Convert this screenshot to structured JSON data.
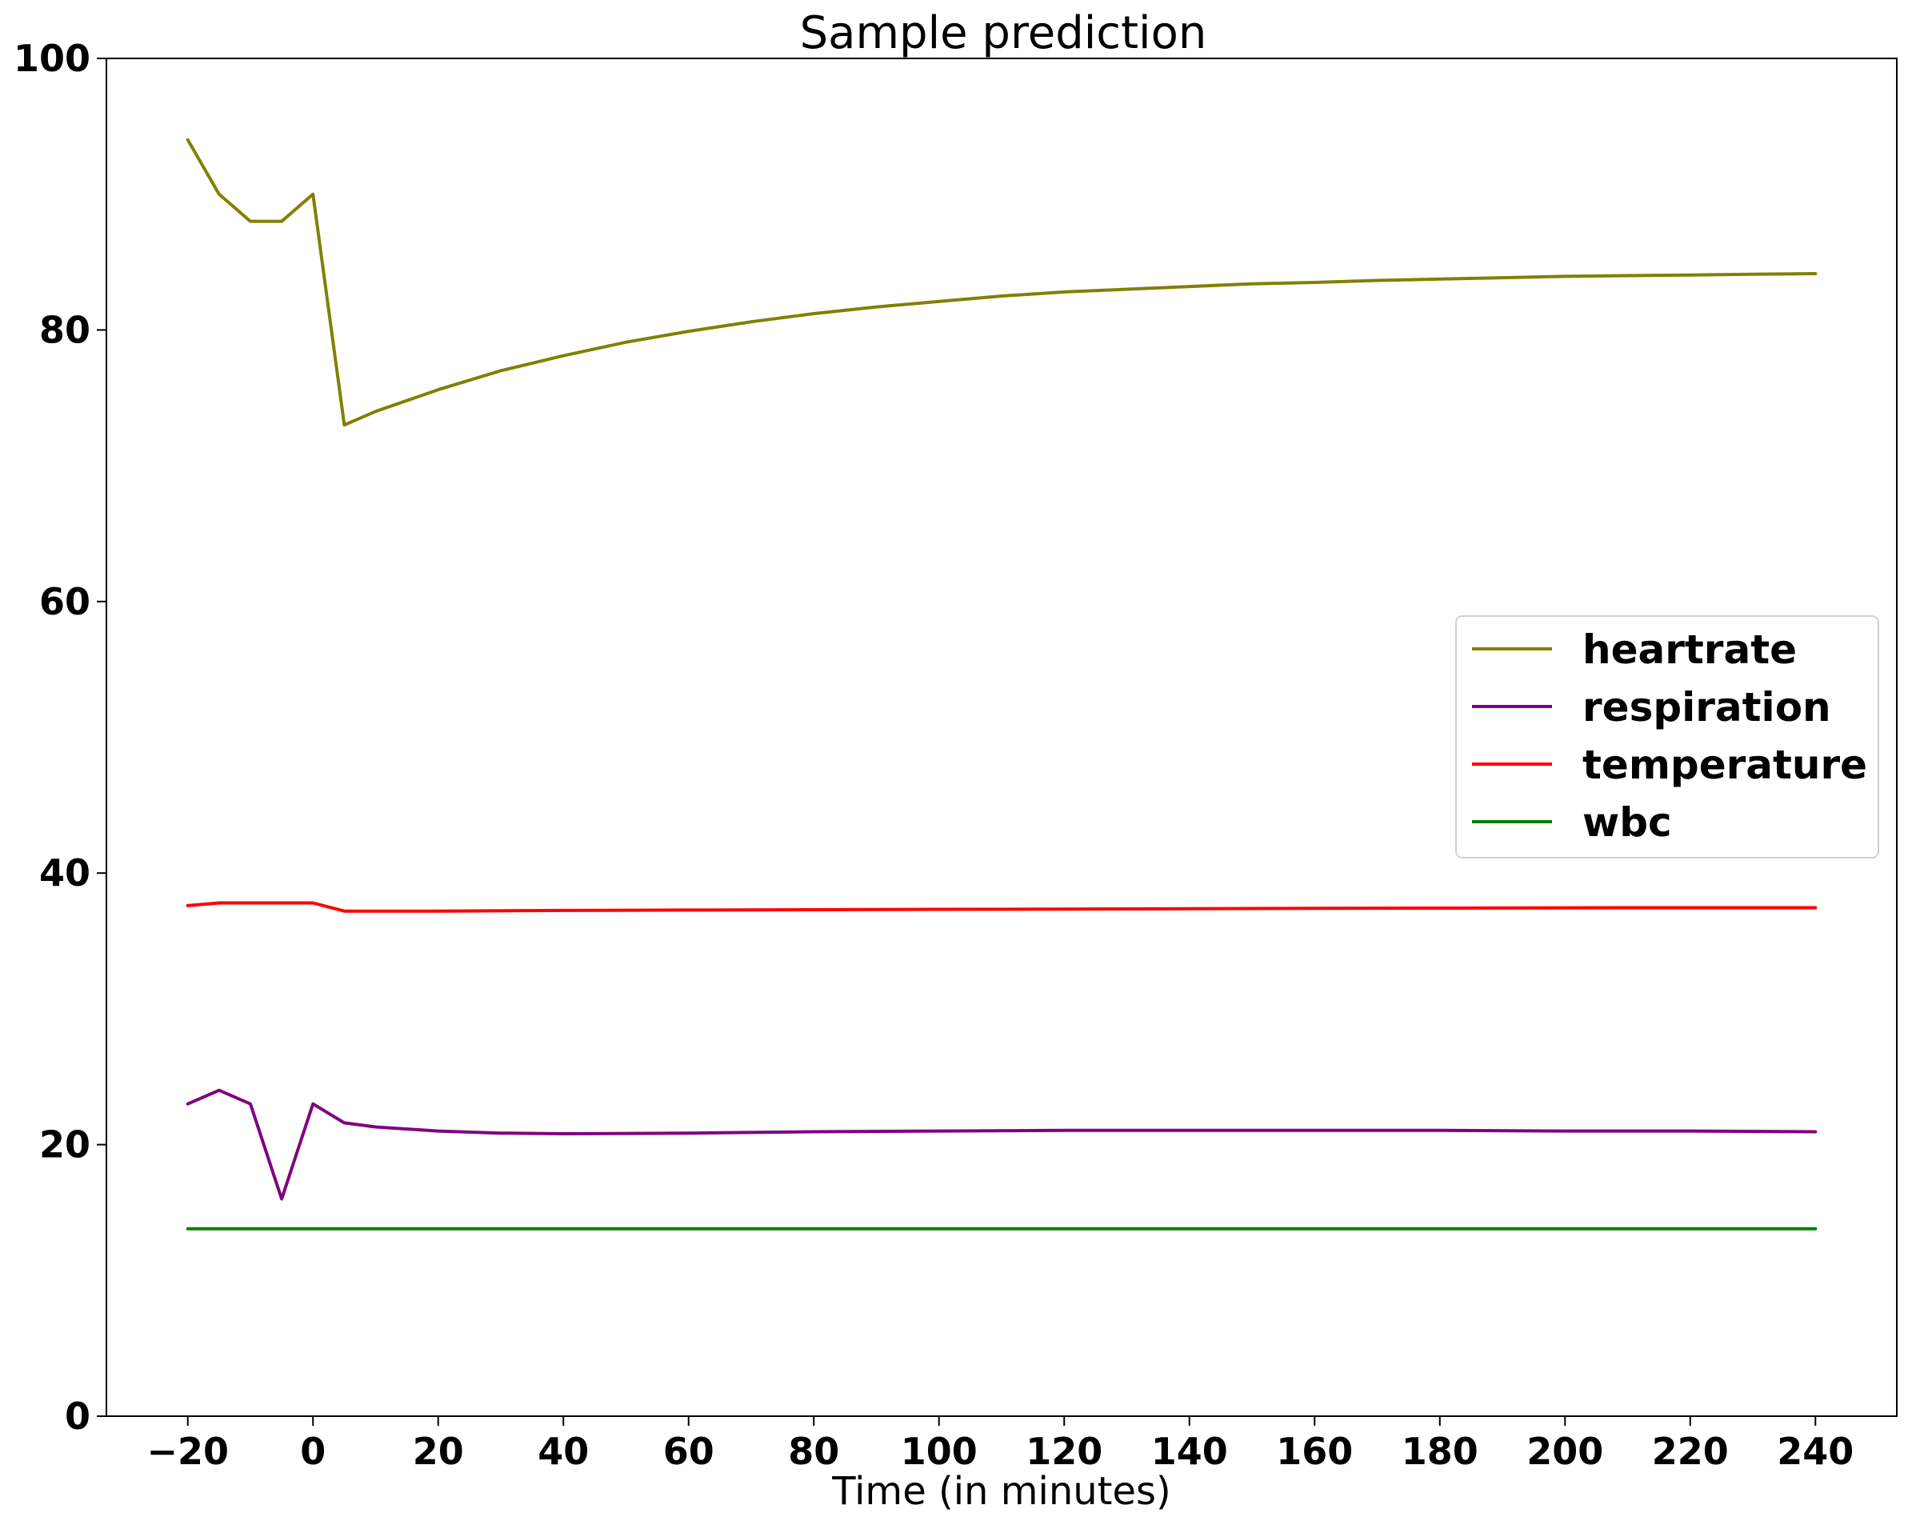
{
  "chart_data": {
    "type": "line",
    "title": "Sample prediction",
    "xlabel": "Time (in minutes)",
    "ylabel": "",
    "xlim": [
      -33,
      253
    ],
    "ylim": [
      0,
      100
    ],
    "xticks": [
      -20,
      0,
      20,
      40,
      60,
      80,
      100,
      120,
      140,
      160,
      180,
      200,
      220,
      240
    ],
    "yticks": [
      0,
      20,
      40,
      60,
      80,
      100
    ],
    "xtick_labels": [
      "−20",
      "0",
      "20",
      "40",
      "60",
      "80",
      "100",
      "120",
      "140",
      "160",
      "180",
      "200",
      "220",
      "240"
    ],
    "ytick_labels": [
      "0",
      "20",
      "40",
      "60",
      "80",
      "100"
    ],
    "grid": false,
    "legend_position": "center-right",
    "series": [
      {
        "name": "heartrate",
        "color": "#808000",
        "x": [
          -20,
          -15,
          -10,
          -5,
          0,
          5,
          10,
          20,
          30,
          40,
          50,
          60,
          70,
          80,
          90,
          100,
          110,
          120,
          130,
          140,
          150,
          160,
          170,
          180,
          190,
          200,
          210,
          220,
          230,
          240
        ],
        "y": [
          94,
          90,
          88,
          88,
          90,
          73,
          74,
          75.6,
          77,
          78.1,
          79.1,
          79.9,
          80.6,
          81.2,
          81.7,
          82.1,
          82.5,
          82.8,
          83.0,
          83.2,
          83.4,
          83.5,
          83.65,
          83.75,
          83.85,
          83.95,
          84.0,
          84.05,
          84.1,
          84.15
        ]
      },
      {
        "name": "respiration",
        "color": "#800080",
        "x": [
          -20,
          -15,
          -10,
          -5,
          0,
          5,
          10,
          20,
          30,
          40,
          60,
          80,
          100,
          120,
          140,
          160,
          180,
          200,
          220,
          240
        ],
        "y": [
          23,
          24,
          23,
          16,
          23,
          21.6,
          21.3,
          21.0,
          20.85,
          20.8,
          20.85,
          20.95,
          21.0,
          21.05,
          21.05,
          21.05,
          21.05,
          21.0,
          21.0,
          20.95
        ]
      },
      {
        "name": "temperature",
        "color": "#ff0000",
        "x": [
          -20,
          -15,
          -10,
          -5,
          0,
          5,
          20,
          40,
          60,
          80,
          100,
          120,
          140,
          160,
          180,
          200,
          220,
          240
        ],
        "y": [
          37.6,
          37.8,
          37.8,
          37.8,
          37.8,
          37.2,
          37.2,
          37.25,
          37.28,
          37.3,
          37.33,
          37.35,
          37.37,
          37.4,
          37.42,
          37.44,
          37.45,
          37.45
        ]
      },
      {
        "name": "wbc",
        "color": "#008000",
        "x": [
          -20,
          240
        ],
        "y": [
          13.8,
          13.8
        ]
      }
    ]
  }
}
